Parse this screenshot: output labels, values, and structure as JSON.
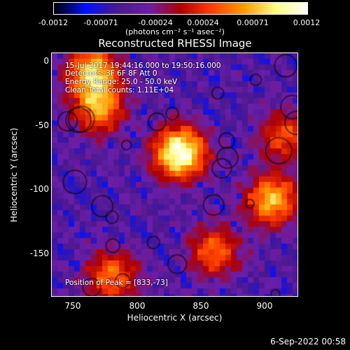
{
  "chart_data": {
    "type": "heatmap",
    "title": "Reconstructed RHESSI Image",
    "xlabel": "Heliocentric X (arcsec)",
    "ylabel": "Heliocentric Y (arcsec)",
    "xlim": [
      733,
      925
    ],
    "ylim": [
      -185,
      5
    ],
    "xticks": [
      750,
      800,
      850,
      900
    ],
    "yticks": [
      0,
      -50,
      -100,
      -150
    ],
    "colorbar": {
      "ticks": [
        "-0.0012",
        "-0.00071",
        "-0.00024",
        "0.00024",
        "0.00071",
        "0.0012"
      ],
      "range": [
        -0.0012,
        0.0012
      ],
      "units": "(photons cm⁻² s⁻¹ asec⁻²)"
    },
    "annotations": [
      "15-Jul-2017 19:44:16.000 to 19:50:16.000",
      "Detectors: 3F 6F 8F  Att 0",
      "Energy Range: 25.0 - 50.0 keV",
      "Clean  Total counts: 1.11E+04",
      "Position of Peak = [833,-73]"
    ],
    "peaks": [
      {
        "x": 833,
        "y": -73,
        "amp": 1.0
      },
      {
        "x": 765,
        "y": -10,
        "amp": 0.75
      },
      {
        "x": 770,
        "y": -38,
        "amp": 0.6
      },
      {
        "x": 905,
        "y": -110,
        "amp": 0.7
      },
      {
        "x": 860,
        "y": -150,
        "amp": 0.5
      },
      {
        "x": 780,
        "y": -170,
        "amp": 0.55
      },
      {
        "x": 915,
        "y": -60,
        "amp": 0.45
      }
    ],
    "grid": false
  },
  "colors": {
    "colormap": [
      "#000000",
      "#0010ff",
      "#4a1890",
      "#6a1ea8",
      "#b00000",
      "#ff4000",
      "#ff9a00",
      "#ffff80",
      "#ffffff"
    ]
  },
  "footer": "6-Sep-2022 00:58"
}
